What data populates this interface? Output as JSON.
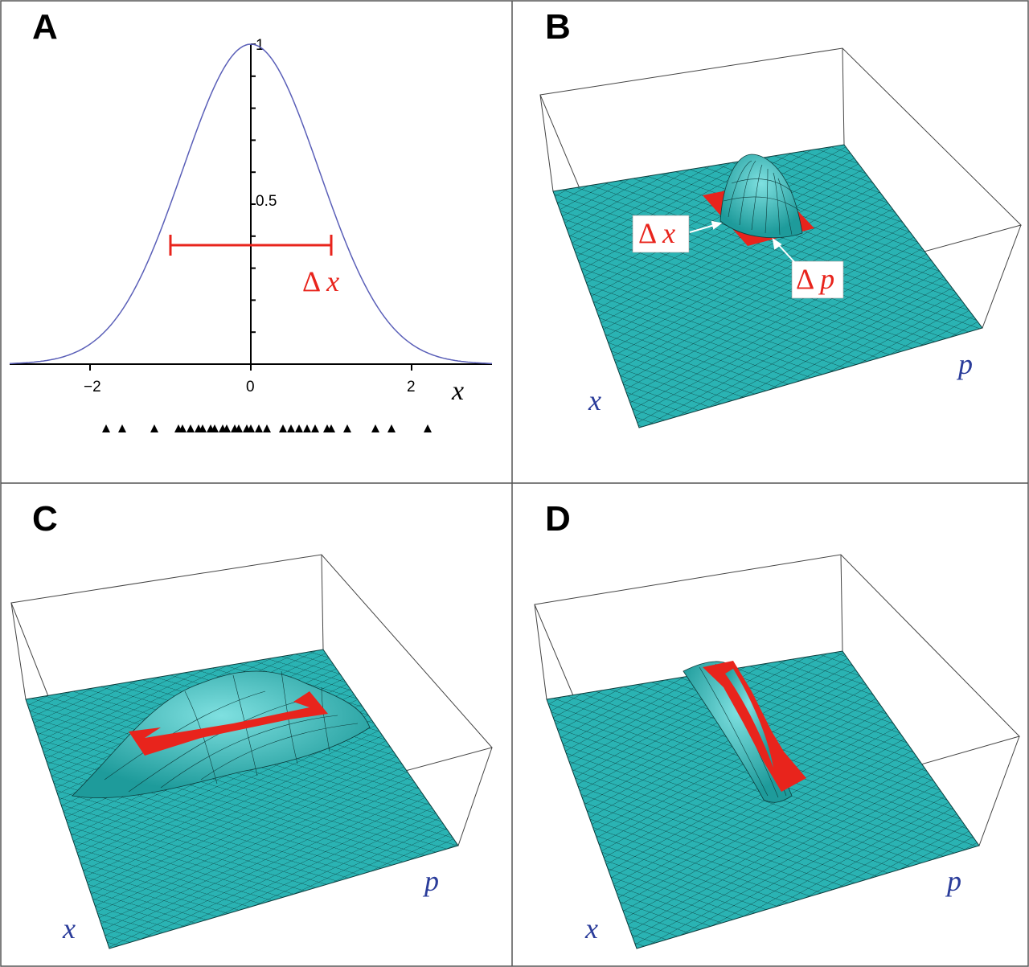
{
  "panels": [
    {
      "id": "A",
      "label": "A"
    },
    {
      "id": "B",
      "label": "B"
    },
    {
      "id": "C",
      "label": "C"
    },
    {
      "id": "D",
      "label": "D"
    }
  ],
  "panel_a": {
    "x_ticks": [
      "−2",
      "0",
      "2"
    ],
    "y_ticks": [
      "0.5",
      "1"
    ],
    "x_axis_var": "x",
    "width_label_delta": "Δ",
    "width_label_var": "x"
  },
  "panel_b": {
    "dx_label_delta": "Δ",
    "dx_label_var": "x",
    "dp_label_delta": "Δ",
    "dp_label_var": "p",
    "x_axis_var": "x",
    "p_axis_var": "p"
  },
  "panel_c": {
    "x_axis_var": "x",
    "p_axis_var": "p"
  },
  "panel_d": {
    "x_axis_var": "x",
    "p_axis_var": "p"
  },
  "colors": {
    "gaussian_curve": "#5a5fb8",
    "width_marker": "#e8241c",
    "surface": "#2ab3b3",
    "surface_mesh": "#0d3c3c",
    "axis_var": "#2a3c9a",
    "border": "#555555"
  },
  "chart_data": {
    "type": "line",
    "title": "",
    "xlabel": "x",
    "ylabel": "",
    "xlim": [
      -3,
      3
    ],
    "ylim": [
      0,
      1
    ],
    "grid": false,
    "series": [
      {
        "function": "exp(-x^2 * ln2)",
        "sigma_note_half_width_at_half_max": 1
      }
    ],
    "annotations": [
      {
        "text": "Δ x",
        "from_x": -1,
        "to_x": 1,
        "y": 0.5
      }
    ],
    "sample_points_x": [
      -1.8,
      -1.6,
      -1.2,
      -0.9,
      -0.85,
      -0.75,
      -0.65,
      -0.6,
      -0.5,
      -0.45,
      -0.35,
      -0.3,
      -0.2,
      -0.15,
      -0.05,
      0.0,
      0.1,
      0.2,
      0.4,
      0.5,
      0.6,
      0.7,
      0.8,
      0.95,
      1.0,
      1.2,
      1.55,
      1.75,
      2.2
    ]
  }
}
